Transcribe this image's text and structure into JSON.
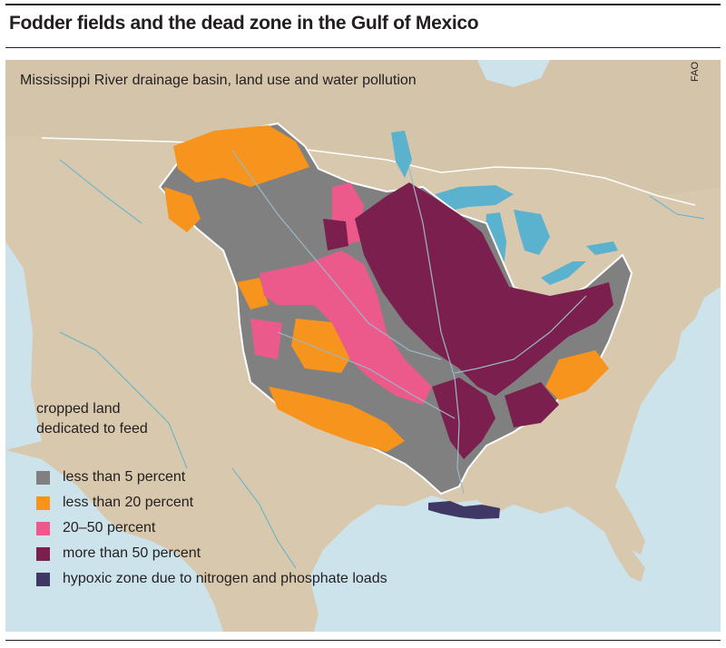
{
  "title": "Fodder fields and the dead zone in the Gulf of Mexico",
  "subtitle": "Mississippi River drainage basin, land use and water pollution",
  "source": "FAO",
  "legend": {
    "heading_line1": "cropped land",
    "heading_line2": "dedicated to feed",
    "items": [
      {
        "label": "less than 5 percent",
        "color": "#808080"
      },
      {
        "label": "less than 20 percent",
        "color": "#f7941d"
      },
      {
        "label": "20–50 percent",
        "color": "#ec5a8c"
      },
      {
        "label": "more than 50 percent",
        "color": "#7b1f4e"
      },
      {
        "label": "hypoxic zone due to nitrogen and phosphate loads",
        "color": "#3f3865"
      }
    ]
  },
  "colors": {
    "water": "#cde3ec",
    "land": "#d8c8ad",
    "lakes_rivers": "#5bb2cf",
    "basin_outline": "#ffffff"
  }
}
